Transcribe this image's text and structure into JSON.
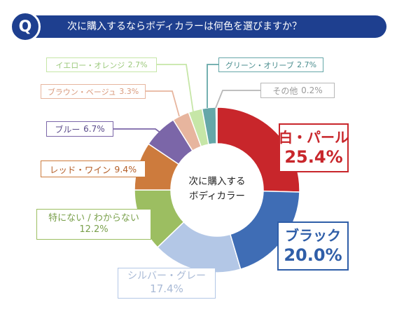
{
  "question": {
    "badge": "Q",
    "text": "次に購入するならボディカラーは何色を選びますか？"
  },
  "chart_data": {
    "type": "pie",
    "title": "次に購入するならボディカラーは何色を選びますか？",
    "center_label": [
      "次に購入する",
      "ボディカラー"
    ],
    "slices": [
      {
        "name": "白・パール",
        "value": 25.4,
        "label": "25.4%",
        "color": "#c8262b"
      },
      {
        "name": "ブラック",
        "value": 20.0,
        "label": "20.0%",
        "color": "#3f6db5"
      },
      {
        "name": "シルバー・グレー",
        "value": 17.4,
        "label": "17.4%",
        "color": "#b3c7e6"
      },
      {
        "name": "特にない / わからない",
        "value": 12.2,
        "label": "12.2%",
        "color": "#9cbe61"
      },
      {
        "name": "レッド・ワイン",
        "value": 9.4,
        "label": "9.4%",
        "color": "#cd7b3d"
      },
      {
        "name": "ブルー",
        "value": 6.7,
        "label": "6.7%",
        "color": "#7b66a8"
      },
      {
        "name": "ブラウン・ベージュ",
        "value": 3.3,
        "label": "3.3%",
        "color": "#e7b59e"
      },
      {
        "name": "イエロー・オレンジ",
        "value": 2.7,
        "label": "2.7%",
        "color": "#c6e6a7"
      },
      {
        "name": "グリーン・オリーブ",
        "value": 2.7,
        "label": "2.7%",
        "color": "#65a7a8"
      },
      {
        "name": "その他",
        "value": 0.2,
        "label": "0.2%",
        "color": "#b8b8b8"
      }
    ]
  }
}
